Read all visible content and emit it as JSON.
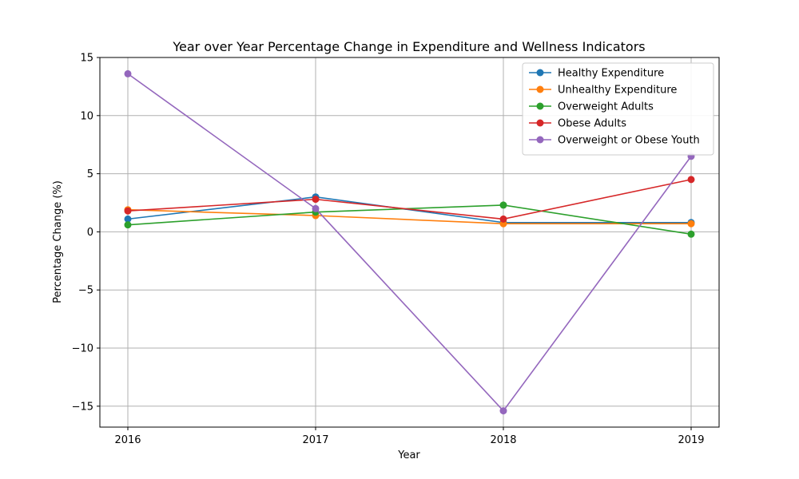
{
  "chart_data": {
    "type": "line",
    "title": "Year over Year Percentage Change in Expenditure and Wellness Indicators",
    "xlabel": "Year",
    "ylabel": "Percentage Change (%)",
    "x": [
      2016,
      2017,
      2018,
      2019
    ],
    "xtick_labels": [
      "2016",
      "2017",
      "2018",
      "2019"
    ],
    "ylim": [
      -16.8,
      15.0
    ],
    "yticks": [
      15,
      10,
      5,
      0,
      -5,
      -10,
      -15
    ],
    "ytick_labels": [
      "15",
      "10",
      "5",
      "0",
      "−5",
      "−10",
      "−15"
    ],
    "grid": true,
    "legend_position": "top-right",
    "series": [
      {
        "name": "Healthy Expenditure",
        "color": "#1f77b4",
        "values": [
          1.1,
          3.0,
          0.8,
          0.8
        ]
      },
      {
        "name": "Unhealthy Expenditure",
        "color": "#ff7f0e",
        "values": [
          1.9,
          1.4,
          0.7,
          0.7
        ]
      },
      {
        "name": "Overweight Adults",
        "color": "#2ca02c",
        "values": [
          0.6,
          1.7,
          2.3,
          -0.2
        ]
      },
      {
        "name": "Obese Adults",
        "color": "#d62728",
        "values": [
          1.8,
          2.8,
          1.1,
          4.5
        ]
      },
      {
        "name": "Overweight or Obese Youth",
        "color": "#9467bd",
        "values": [
          13.6,
          2.0,
          -15.4,
          6.5
        ]
      }
    ]
  }
}
